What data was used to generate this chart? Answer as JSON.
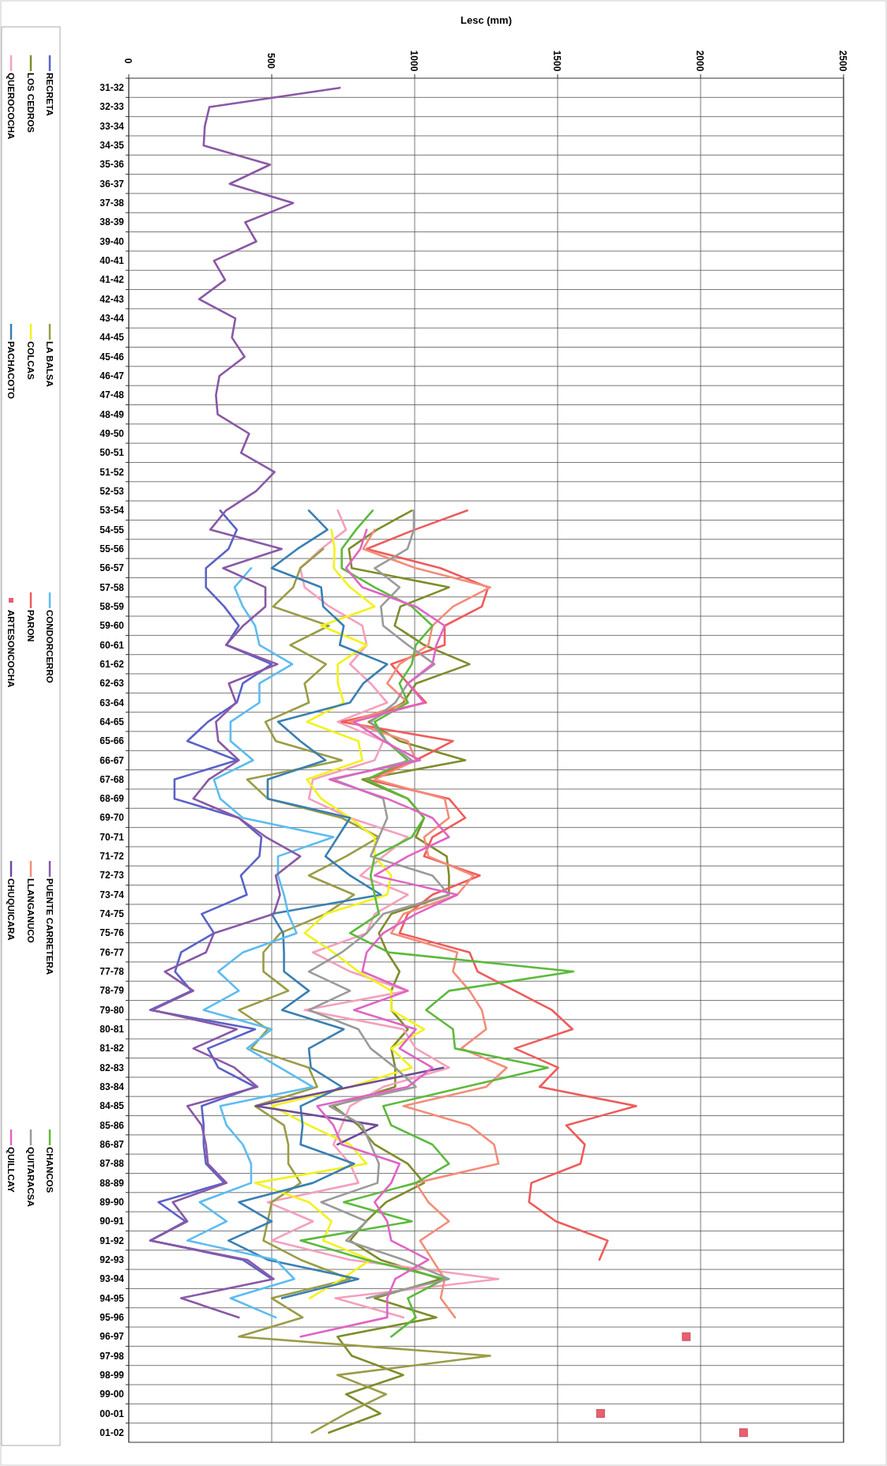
{
  "chart_data": {
    "type": "line",
    "orientation": "horizontal",
    "xlabel": "Lesc (mm)",
    "categories": [
      "31-32",
      "32-33",
      "33-34",
      "34-35",
      "35-36",
      "36-37",
      "37-38",
      "38-39",
      "39-40",
      "40-41",
      "41-42",
      "42-43",
      "43-44",
      "44-45",
      "45-46",
      "46-47",
      "47-48",
      "48-49",
      "49-50",
      "50-51",
      "51-52",
      "52-53",
      "53-54",
      "54-55",
      "55-56",
      "56-57",
      "57-58",
      "58-59",
      "59-60",
      "60-61",
      "61-62",
      "62-63",
      "63-64",
      "64-65",
      "65-66",
      "66-67",
      "67-68",
      "68-69",
      "69-70",
      "70-71",
      "71-72",
      "72-73",
      "73-74",
      "74-75",
      "75-76",
      "76-77",
      "77-78",
      "78-79",
      "79-80",
      "80-81",
      "81-82",
      "82-83",
      "83-84",
      "84-85",
      "85-86",
      "86-87",
      "87-88",
      "88-89",
      "89-90",
      "90-91",
      "91-92",
      "92-93",
      "93-94",
      "94-95",
      "95-96",
      "96-97",
      "97-98",
      "98-99",
      "99-00",
      "00-01",
      "01-02"
    ],
    "xlim": [
      0,
      2500
    ],
    "xticks": [
      0,
      500,
      1000,
      1500,
      2000,
      2500
    ],
    "grid": true,
    "legend": "left",
    "series": [
      {
        "name": "RECRETA",
        "color": "#5a62c8",
        "values": [
          null,
          null,
          null,
          null,
          null,
          null,
          null,
          null,
          null,
          null,
          null,
          null,
          null,
          null,
          null,
          null,
          null,
          null,
          null,
          null,
          null,
          null,
          320,
          378,
          349,
          270,
          270,
          334,
          385,
          342,
          500,
          399,
          378,
          277,
          205,
          378,
          160,
          160,
          385,
          464,
          457,
          392,
          413,
          255,
          298,
          183,
          162,
          219,
          75,
          442,
          277,
          313,
          442,
          255,
          262,
          262,
          270,
          334,
          104,
          198,
          75,
          399,
          500,
          null,
          null,
          null,
          null,
          null,
          null,
          null,
          null
        ]
      },
      {
        "name": "LOS CEDROS",
        "color": "#7f8c2a",
        "values": [
          null,
          null,
          null,
          null,
          null,
          null,
          null,
          null,
          null,
          null,
          null,
          null,
          null,
          null,
          null,
          null,
          null,
          null,
          null,
          null,
          null,
          null,
          990,
          868,
          770,
          780,
          1120,
          950,
          930,
          1033,
          1192,
          1005,
          960,
          839,
          947,
          1177,
          817,
          976,
          1033,
          1004,
          1112,
          1120,
          1120,
          918,
          875,
          904,
          947,
          918,
          918,
          976,
          918,
          932,
          932,
          716,
          803,
          860,
          976,
          1033,
          900,
          830,
          774,
          880,
          1091,
          860,
          1076,
          730,
          780,
          960,
          760,
          880,
          700
        ]
      },
      {
        "name": "QUEROCOCHA",
        "color": "#f4a0bc",
        "values": [
          null,
          null,
          null,
          null,
          null,
          null,
          null,
          null,
          null,
          null,
          null,
          null,
          null,
          null,
          null,
          null,
          null,
          null,
          null,
          null,
          null,
          null,
          731,
          760,
          673,
          600,
          615,
          702,
          817,
          832,
          774,
          846,
          904,
          731,
          890,
          860,
          644,
          630,
          774,
          976,
          890,
          810,
          976,
          860,
          832,
          644,
          774,
          976,
          615,
          961,
          1004,
          1120,
          890,
          774,
          745,
          716,
          774,
          803,
          486,
          644,
          500,
          774,
          1293,
          723,
          961,
          null,
          null,
          null,
          null,
          null,
          null
        ]
      },
      {
        "name": "LA BALSA",
        "color": "#9a9c45",
        "values": [
          null,
          null,
          null,
          null,
          null,
          null,
          null,
          null,
          null,
          null,
          null,
          null,
          null,
          null,
          null,
          null,
          null,
          null,
          null,
          null,
          null,
          null,
          null,
          null,
          680,
          600,
          575,
          505,
          700,
          565,
          690,
          615,
          630,
          478,
          514,
          745,
          414,
          486,
          745,
          875,
          760,
          630,
          788,
          688,
          530,
          471,
          471,
          558,
          385,
          486,
          428,
          630,
          659,
          442,
          543,
          558,
          558,
          601,
          500,
          486,
          471,
          601,
          774,
          500,
          608,
          385,
          1264,
          730,
          900,
          760,
          640
        ]
      },
      {
        "name": "COLCAS",
        "color": "#f2f21a",
        "values": [
          null,
          null,
          null,
          null,
          null,
          null,
          null,
          null,
          null,
          null,
          null,
          null,
          null,
          null,
          null,
          null,
          null,
          null,
          null,
          null,
          null,
          null,
          null,
          709,
          720,
          717,
          774,
          860,
          673,
          832,
          731,
          731,
          752,
          623,
          803,
          817,
          623,
          673,
          774,
          860,
          860,
          918,
          904,
          688,
          615,
          716,
          803,
          918,
          918,
          1033,
          918,
          990,
          774,
          500,
          630,
          774,
          832,
          442,
          630,
          709,
          680,
          846,
          745,
          633,
          null,
          null,
          null,
          null,
          null,
          null,
          null
        ]
      },
      {
        "name": "PACHACOTO",
        "color": "#3a7fb2",
        "values": [
          null,
          null,
          null,
          null,
          null,
          null,
          null,
          null,
          null,
          null,
          null,
          null,
          null,
          null,
          null,
          null,
          null,
          null,
          null,
          null,
          null,
          null,
          630,
          695,
          590,
          500,
          673,
          680,
          752,
          738,
          904,
          820,
          774,
          522,
          600,
          688,
          486,
          486,
          774,
          731,
          688,
          774,
          882,
          500,
          540,
          543,
          543,
          630,
          536,
          752,
          630,
          637,
          745,
          601,
          608,
          601,
          788,
          644,
          385,
          500,
          349,
          486,
          803,
          536,
          null,
          null,
          null,
          null,
          null,
          null,
          null
        ]
      },
      {
        "name": "CONDORCERRO",
        "color": "#5cbcf0",
        "values": [
          null,
          null,
          null,
          null,
          null,
          null,
          null,
          null,
          null,
          null,
          null,
          null,
          null,
          null,
          null,
          null,
          null,
          null,
          null,
          null,
          null,
          null,
          null,
          null,
          null,
          428,
          370,
          399,
          442,
          457,
          572,
          457,
          457,
          356,
          356,
          435,
          298,
          320,
          399,
          716,
          522,
          522,
          543,
          558,
          587,
          399,
          313,
          385,
          262,
          500,
          414,
          529,
          644,
          320,
          342,
          399,
          428,
          428,
          248,
          342,
          205,
          514,
          579,
          356,
          514,
          null,
          null,
          null,
          null,
          null,
          null
        ]
      },
      {
        "name": "PARON",
        "color": "#ef5b5b",
        "values": [
          null,
          null,
          null,
          null,
          null,
          null,
          null,
          null,
          null,
          null,
          null,
          null,
          null,
          null,
          null,
          null,
          null,
          null,
          null,
          null,
          null,
          null,
          1184,
          1000,
          832,
          1090,
          1257,
          1235,
          1105,
          1105,
          918,
          976,
          1040,
          745,
          1134,
          1004,
          832,
          1120,
          1177,
          1062,
          1033,
          1228,
          1062,
          976,
          947,
          1192,
          1220,
          1350,
          1480,
          1552,
          1350,
          1502,
          1437,
          1775,
          1530,
          1595,
          1580,
          1408,
          1400,
          1494,
          1675,
          1646,
          null,
          null,
          null,
          null,
          null,
          null,
          null,
          null,
          null
        ]
      },
      {
        "name": "ARTESONCOCHA",
        "color": "#e86070",
        "type": "scatter",
        "marker": "square",
        "values": [
          null,
          null,
          null,
          null,
          null,
          null,
          null,
          null,
          null,
          null,
          null,
          null,
          null,
          null,
          null,
          null,
          null,
          null,
          null,
          null,
          null,
          null,
          null,
          null,
          null,
          null,
          null,
          null,
          null,
          null,
          null,
          null,
          null,
          null,
          null,
          null,
          null,
          null,
          null,
          null,
          null,
          null,
          null,
          null,
          null,
          null,
          null,
          null,
          null,
          null,
          null,
          null,
          null,
          null,
          null,
          null,
          null,
          null,
          null,
          null,
          null,
          null,
          null,
          null,
          null,
          1950,
          null,
          null,
          null,
          1650,
          2150
        ]
      },
      {
        "name": "PUENTE CARRETERA",
        "color": "#8a58a6",
        "values": [
          738,
          282,
          266,
          262,
          494,
          353,
          575,
          407,
          446,
          298,
          337,
          246,
          373,
          361,
          405,
          317,
          305,
          311,
          421,
          393,
          510,
          445,
          340,
          285,
          535,
          330,
          478,
          478,
          400,
          340,
          520,
          350,
          375,
          305,
          313,
          385,
          280,
          226,
          385,
          480,
          600,
          514,
          529,
          507,
          298,
          270,
          126,
          226,
          82,
          378,
          226,
          370,
          450,
          205,
          255,
          270,
          277,
          342,
          154,
          205,
          75,
          414,
          507,
          183,
          385,
          null,
          null,
          null,
          null,
          null,
          null
        ]
      },
      {
        "name": "LLANGANUCO",
        "color": "#f48c78",
        "values": [
          null,
          null,
          null,
          null,
          null,
          null,
          null,
          null,
          null,
          null,
          null,
          null,
          null,
          null,
          null,
          null,
          null,
          null,
          null,
          null,
          null,
          null,
          null,
          860,
          820,
          1004,
          1264,
          1134,
          1062,
          1048,
          947,
          904,
          976,
          774,
          976,
          1004,
          860,
          1105,
          1120,
          1033,
          1048,
          1206,
          1149,
          961,
          918,
          1149,
          1134,
          1192,
          1235,
          1250,
          1163,
          1322,
          1250,
          961,
          1192,
          1278,
          1293,
          1004,
          1048,
          1120,
          1019,
          1062,
          1105,
          1091,
          1141,
          null,
          null,
          null,
          null,
          null,
          null
        ]
      },
      {
        "name": "CHUQUICARA",
        "color": "#6f4a98",
        "values": [
          null,
          null,
          null,
          null,
          null,
          null,
          null,
          null,
          null,
          null,
          null,
          null,
          null,
          null,
          null,
          null,
          null,
          null,
          null,
          null,
          null,
          null,
          null,
          null,
          null,
          null,
          null,
          null,
          null,
          null,
          null,
          null,
          null,
          null,
          null,
          null,
          null,
          null,
          null,
          null,
          null,
          null,
          null,
          null,
          null,
          null,
          null,
          null,
          null,
          null,
          null,
          1100,
          775,
          445,
          870,
          730,
          null,
          null,
          null,
          null,
          null,
          null,
          null,
          null,
          null,
          null,
          null,
          null,
          null,
          null,
          null
        ]
      },
      {
        "name": "CHANCOS",
        "color": "#5cba3c",
        "values": [
          null,
          null,
          null,
          null,
          null,
          null,
          null,
          null,
          null,
          null,
          null,
          null,
          null,
          null,
          null,
          null,
          null,
          null,
          null,
          null,
          null,
          null,
          853,
          795,
          745,
          745,
          860,
          990,
          1062,
          1004,
          990,
          947,
          976,
          860,
          900,
          976,
          832,
          976,
          1033,
          990,
          860,
          846,
          860,
          875,
          774,
          910,
          1555,
          1120,
          1040,
          1134,
          1141,
          1466,
          1177,
          890,
          918,
          1062,
          1120,
          1004,
          752,
          990,
          601,
          832,
          1105,
          976,
          1004,
          918,
          null,
          null,
          null,
          null,
          null
        ]
      },
      {
        "name": "QUITARACSA",
        "color": "#9a9a9a",
        "values": [
          null,
          null,
          null,
          null,
          null,
          null,
          null,
          null,
          null,
          null,
          null,
          null,
          null,
          null,
          null,
          null,
          null,
          null,
          null,
          null,
          null,
          null,
          997,
          997,
          975,
          860,
          947,
          882,
          890,
          976,
          1069,
          976,
          932,
          846,
          900,
          990,
          716,
          890,
          904,
          875,
          846,
          1062,
          1120,
          890,
          832,
          745,
          630,
          774,
          630,
          803,
          846,
          932,
          1004,
          702,
          817,
          846,
          875,
          870,
          673,
          832,
          760,
          961,
          1120,
          832,
          null,
          null,
          null,
          null,
          null,
          null,
          null
        ]
      },
      {
        "name": "QUILLCAY",
        "color": "#e064c4",
        "values": [
          null,
          null,
          null,
          null,
          null,
          null,
          null,
          null,
          null,
          null,
          null,
          null,
          null,
          null,
          null,
          null,
          null,
          null,
          null,
          null,
          null,
          null,
          null,
          832,
          810,
          760,
          817,
          1004,
          1105,
          1076,
          1062,
          976,
          1033,
          788,
          890,
          1019,
          702,
          904,
          1062,
          1120,
          976,
          860,
          1149,
          1004,
          890,
          832,
          817,
          976,
          788,
          1004,
          947,
          1062,
          976,
          659,
          716,
          745,
          947,
          918,
          860,
          904,
          918,
          1048,
          932,
          904,
          904,
          601,
          null,
          null,
          null,
          null,
          null
        ]
      }
    ]
  }
}
